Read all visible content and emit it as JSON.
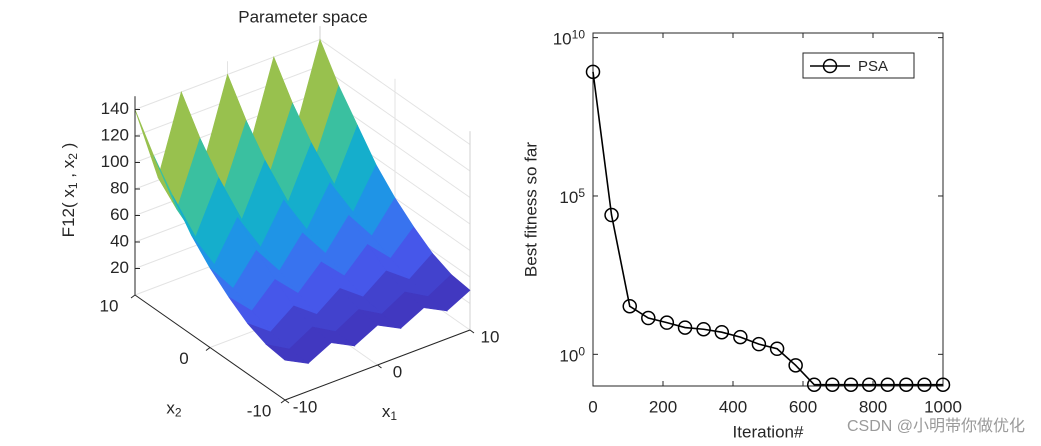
{
  "chart_data": [
    {
      "type": "surface",
      "title": "Parameter space",
      "xlabel": [
        "x",
        "1"
      ],
      "ylabel": [
        "x",
        "2"
      ],
      "zlabel": [
        "F12( x",
        "1",
        " , x",
        "2",
        " )"
      ],
      "x": [
        -10,
        -7.5,
        -5,
        -2.5,
        0,
        2.5,
        5,
        7.5,
        10
      ],
      "y": [
        -10,
        -7.5,
        -5,
        -2.5,
        0,
        2.5,
        5,
        7.5,
        10
      ],
      "z": [
        [
          30,
          21,
          30,
          21,
          30,
          21,
          30,
          21,
          30
        ],
        [
          32,
          22,
          32,
          22,
          32,
          22,
          32,
          22,
          32
        ],
        [
          38,
          25,
          38,
          25,
          38,
          25,
          38,
          25,
          38
        ],
        [
          48,
          31,
          48,
          31,
          48,
          31,
          48,
          31,
          48
        ],
        [
          60,
          38,
          60,
          38,
          60,
          38,
          60,
          38,
          60
        ],
        [
          75,
          46,
          75,
          46,
          75,
          46,
          75,
          46,
          75
        ],
        [
          95,
          57,
          95,
          57,
          95,
          57,
          95,
          57,
          95
        ],
        [
          115,
          68,
          115,
          68,
          115,
          68,
          115,
          68,
          115
        ],
        [
          140,
          82,
          140,
          82,
          140,
          82,
          140,
          82,
          140
        ]
      ],
      "xlim": [
        -10,
        10
      ],
      "ylim": [
        -10,
        10
      ],
      "zlim": [
        0,
        150
      ],
      "xticks": [
        -10,
        0,
        10
      ],
      "yticks": [
        -10,
        0,
        10
      ],
      "zticks": [
        20,
        40,
        60,
        80,
        100,
        120,
        140
      ],
      "colormap": "parula",
      "grid": true
    },
    {
      "type": "line",
      "xlabel": "Iteration#",
      "ylabel": "Best fitness so far",
      "x": [
        0,
        53,
        105,
        158,
        211,
        263,
        316,
        368,
        421,
        474,
        526,
        579,
        632,
        684,
        737,
        789,
        842,
        895,
        947,
        1000
      ],
      "series": [
        {
          "name": "PSA",
          "color": "#000000",
          "marker": "o",
          "values": [
            830000000,
            25000,
            33,
            14,
            10,
            7,
            6.2,
            5,
            3.5,
            2.1,
            1.5,
            0.45,
            0.11,
            0.11,
            0.11,
            0.11,
            0.11,
            0.11,
            0.11,
            0.11
          ]
        }
      ],
      "xlim": [
        0,
        1000
      ],
      "xticks": [
        0,
        200,
        400,
        600,
        800,
        1000
      ],
      "ylim": [
        0.1,
        14000000000
      ],
      "yscale": "log",
      "yticks": [
        {
          "value": 1,
          "label": "10",
          "exponent": "0"
        },
        {
          "value": 100000,
          "label": "10",
          "exponent": "5"
        },
        {
          "value": 10000000000,
          "label": "10",
          "exponent": "10"
        }
      ],
      "legend": "northeast"
    }
  ],
  "watermark": "CSDN @小明带你做优化"
}
